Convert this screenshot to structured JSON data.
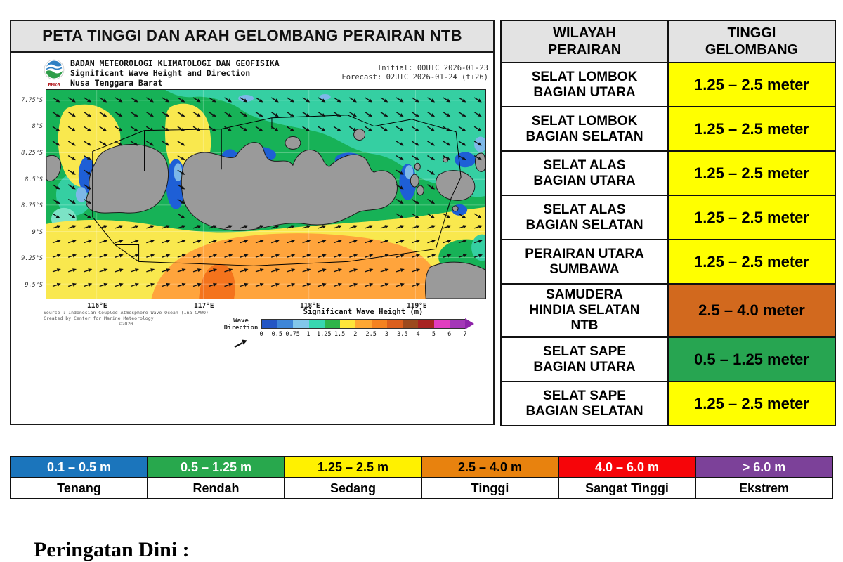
{
  "map_panel": {
    "title": "PETA TINGGI DAN ARAH GELOMBANG PERAIRAN NTB",
    "header": {
      "logo_text": "BMKG",
      "agency": "BADAN METEOROLOGI KLIMATOLOGI DAN GEOFISIKA",
      "product": "Significant Wave Height and Direction",
      "region": "Nusa Tenggara Barat",
      "initial": "Initial: 00UTC 2026-01-23",
      "forecast": "Forecast: 02UTC 2026-01-24 (t+26)"
    },
    "axis": {
      "lat_ticks": [
        "7.75°S",
        "8°S",
        "8.25°S",
        "8.5°S",
        "8.75°S",
        "9°S",
        "9.25°S",
        "9.5°S"
      ],
      "lon_ticks": [
        "116°E",
        "117°E",
        "118°E",
        "119°E"
      ]
    },
    "footer": {
      "source_line1": "Source : Indonesian Coupled Atmosphere Wave Ocean (Ina-CAWO)",
      "source_line2": "Created by Center for Marine Meteorology,",
      "source_line3": "©2020",
      "wave_direction_label": "Wave\nDirection",
      "colorbar_title": "Significant Wave Height (m)",
      "colorbar_ticks": [
        "0",
        "0.5",
        "0.75",
        "1",
        "1.25",
        "1.5",
        "2",
        "2.5",
        "3",
        "3.5",
        "4",
        "5",
        "6",
        "7"
      ],
      "colorbar_colors": [
        "#2456c4",
        "#3e86d8",
        "#82c7ea",
        "#38d7b0",
        "#2eb44a",
        "#ffe53b",
        "#ffa733",
        "#f58220",
        "#dc5f1d",
        "#9c4a1e",
        "#a82322",
        "#e23dc0",
        "#a437b8"
      ],
      "colorbar_arrow_color": "#8e24aa"
    }
  },
  "table": {
    "headers": [
      "WILAYAH\nPERAIRAN",
      "TINGGI\nGELOMBANG"
    ],
    "rows": [
      {
        "area": "SELAT LOMBOK\nBAGIAN UTARA",
        "height": "1.25 – 2.5 meter",
        "color": "#ffff00",
        "text_color": "#000000"
      },
      {
        "area": "SELAT LOMBOK\nBAGIAN SELATAN",
        "height": "1.25 – 2.5 meter",
        "color": "#ffff00",
        "text_color": "#000000"
      },
      {
        "area": "SELAT ALAS\nBAGIAN UTARA",
        "height": "1.25 – 2.5 meter",
        "color": "#ffff00",
        "text_color": "#000000"
      },
      {
        "area": "SELAT ALAS\nBAGIAN SELATAN",
        "height": "1.25 – 2.5 meter",
        "color": "#ffff00",
        "text_color": "#000000"
      },
      {
        "area": "PERAIRAN UTARA\nSUMBAWA",
        "height": "1.25 – 2.5 meter",
        "color": "#ffff00",
        "text_color": "#000000"
      },
      {
        "area": "SAMUDERA\nHINDIA SELATAN\nNTB",
        "height": "2.5 – 4.0 meter",
        "color": "#d2691e",
        "text_color": "#000000"
      },
      {
        "area": "SELAT SAPE\nBAGIAN UTARA",
        "height": "0.5 – 1.25 meter",
        "color": "#27a551",
        "text_color": "#000000"
      },
      {
        "area": "SELAT SAPE\nBAGIAN SELATAN",
        "height": "1.25 – 2.5 meter",
        "color": "#ffff00",
        "text_color": "#000000"
      }
    ]
  },
  "legend": {
    "items": [
      {
        "range": "0.1 – 0.5 m",
        "label": "Tenang",
        "color": "#1b75bc",
        "text_color": "#ffffff"
      },
      {
        "range": "0.5 – 1.25 m",
        "label": "Rendah",
        "color": "#28a84d",
        "text_color": "#ffffff"
      },
      {
        "range": "1.25 – 2.5 m",
        "label": "Sedang",
        "color": "#fff100",
        "text_color": "#000000"
      },
      {
        "range": "2.5 – 4.0 m",
        "label": "Tinggi",
        "color": "#e8820e",
        "text_color": "#000000"
      },
      {
        "range": "4.0 – 6.0 m",
        "label": "Sangat Tinggi",
        "color": "#f60509",
        "text_color": "#ffffff"
      },
      {
        "range": "> 6.0 m",
        "label": "Ekstrem",
        "color": "#7c4199",
        "text_color": "#ffffff"
      }
    ]
  },
  "warning": {
    "title": "Peringatan Dini :"
  }
}
